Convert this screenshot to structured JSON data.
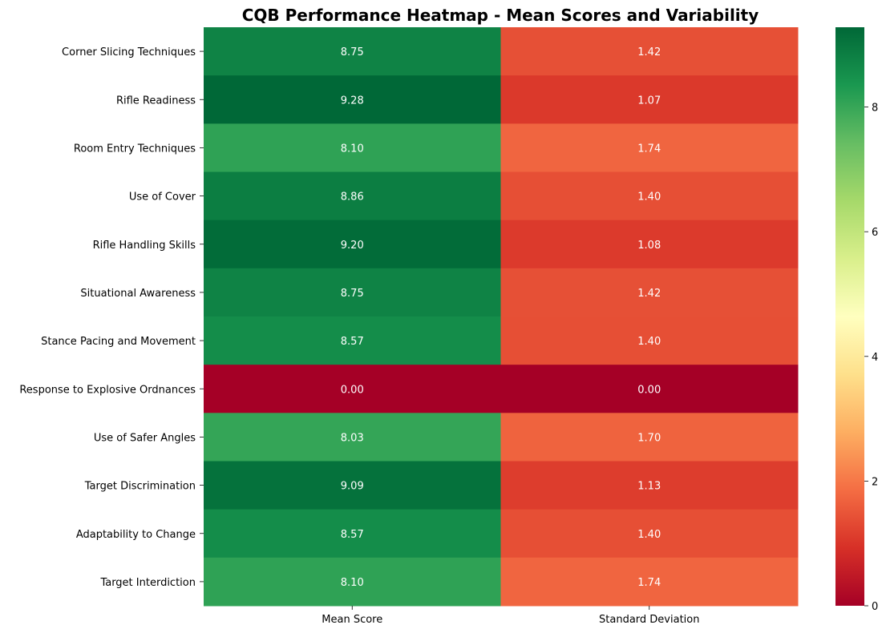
{
  "chart_data": {
    "type": "heatmap",
    "title": "CQB Performance Heatmap - Mean Scores and Variability",
    "xlabel": "",
    "ylabel": "",
    "columns": [
      "Mean Score",
      "Standard Deviation"
    ],
    "rows": [
      "Corner Slicing Techniques",
      "Rifle Readiness",
      "Room Entry Techniques",
      "Use of Cover",
      "Rifle Handling Skills",
      "Situational Awareness",
      "Stance Pacing and Movement",
      "Response to Explosive Ordnances",
      "Use of Safer Angles",
      "Target Discrimination",
      "Adaptability to Change",
      "Target Interdiction"
    ],
    "values": [
      [
        8.75,
        1.42
      ],
      [
        9.28,
        1.07
      ],
      [
        8.1,
        1.74
      ],
      [
        8.86,
        1.4
      ],
      [
        9.2,
        1.08
      ],
      [
        8.75,
        1.42
      ],
      [
        8.57,
        1.4
      ],
      [
        0.0,
        0.0
      ],
      [
        8.03,
        1.7
      ],
      [
        9.09,
        1.13
      ],
      [
        8.57,
        1.4
      ],
      [
        8.1,
        1.74
      ]
    ],
    "value_labels": [
      [
        "8.75",
        "1.42"
      ],
      [
        "9.28",
        "1.07"
      ],
      [
        "8.10",
        "1.74"
      ],
      [
        "8.86",
        "1.40"
      ],
      [
        "9.20",
        "1.08"
      ],
      [
        "8.75",
        "1.42"
      ],
      [
        "8.57",
        "1.40"
      ],
      [
        "0.00",
        "0.00"
      ],
      [
        "8.03",
        "1.70"
      ],
      [
        "9.09",
        "1.13"
      ],
      [
        "8.57",
        "1.40"
      ],
      [
        "8.10",
        "1.74"
      ]
    ],
    "colormap": "RdYlGn",
    "vmin": 0,
    "vmax": 9.28,
    "colorbar_ticks": [
      0,
      2,
      4,
      6,
      8
    ],
    "colorbar_tick_labels": [
      "0",
      "2",
      "4",
      "6",
      "8"
    ],
    "annot_color": "#ffffff",
    "grid": false
  }
}
